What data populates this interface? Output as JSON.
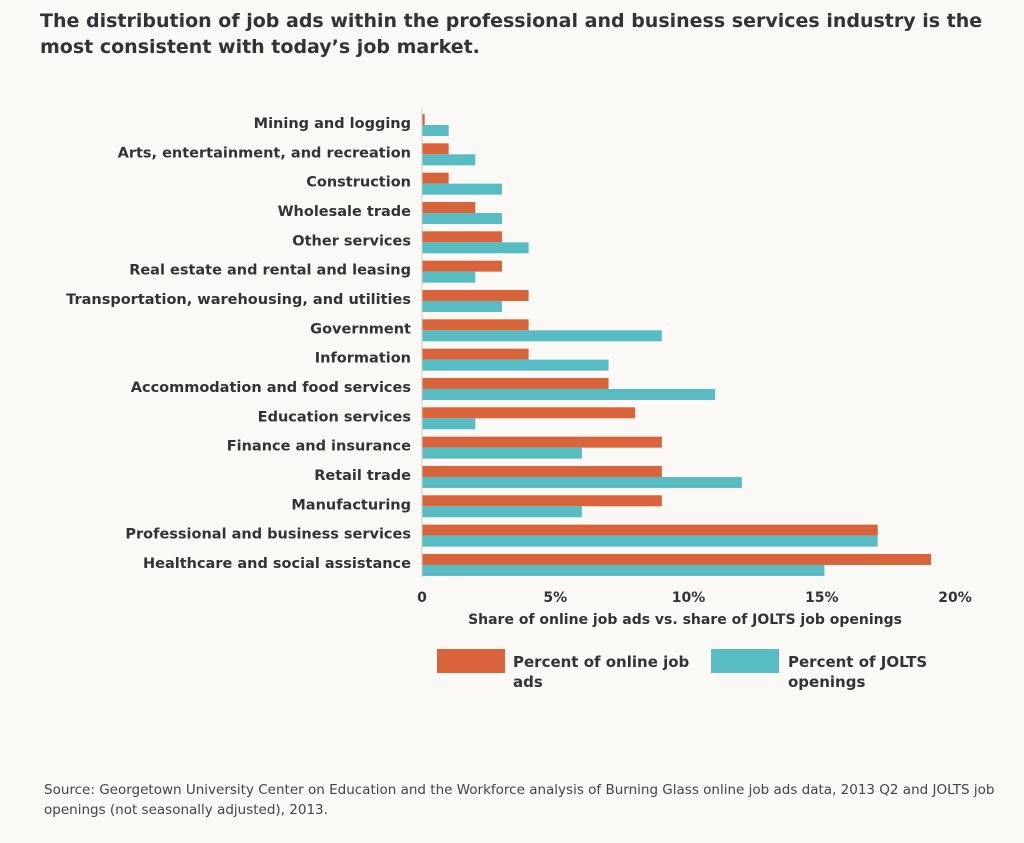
{
  "title": "The distribution of job ads within the professional and business services industry is the most consistent with today’s job market.",
  "chart_data": {
    "type": "bar",
    "orientation": "horizontal",
    "categories": [
      "Mining and logging",
      "Arts, entertainment, and recreation",
      "Construction",
      "Wholesale trade",
      "Other services",
      "Real estate and rental and leasing",
      "Transportation, warehousing, and utilities",
      "Government",
      "Information",
      "Accommodation and food services",
      "Education services",
      "Finance and insurance",
      "Retail trade",
      "Manufacturing",
      "Professional and business services",
      "Healthcare and social assistance"
    ],
    "series": [
      {
        "name": "Percent of online job ads",
        "color": "#d9643c",
        "values": [
          0.1,
          1,
          1,
          2,
          3,
          3,
          4,
          4,
          4,
          7,
          8,
          9,
          9,
          9,
          17.1,
          19.1
        ]
      },
      {
        "name": "Percent of JOLTS openings",
        "color": "#58bcc3",
        "values": [
          1,
          2,
          3,
          3,
          4,
          2,
          3,
          9,
          7,
          11,
          2,
          6,
          12,
          6,
          17.1,
          15.1
        ]
      }
    ],
    "xlabel": "Share of online job ads vs. share of JOLTS job openings",
    "xlim": [
      0,
      20
    ],
    "xticks": [
      "0",
      "5%",
      "10%",
      "15%",
      "20%"
    ],
    "grid": false,
    "legend_placement": "bottom"
  },
  "legend": {
    "ads": "Percent of online job ads",
    "jolts": "Percent of JOLTS openings"
  },
  "source": "Source: Georgetown University Center on Education and the Workforce analysis of Burning Glass online job ads data, 2013 Q2 and JOLTS job openings (not seasonally adjusted), 2013."
}
